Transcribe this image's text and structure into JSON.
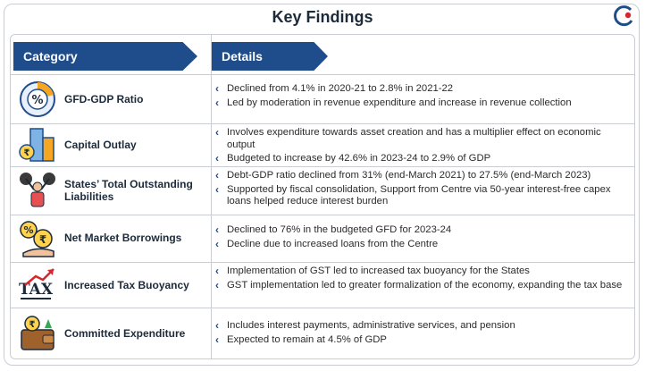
{
  "title": "Key Findings",
  "headers": {
    "category": "Category",
    "details": "Details"
  },
  "rows": [
    {
      "icon": "pie-chart-percent-icon",
      "category": "GFD-GDP Ratio",
      "details": [
        "Declined from 4.1% in 2020-21 to 2.8% in 2021-22",
        "Led by moderation in revenue expenditure and increase in revenue collection"
      ]
    },
    {
      "icon": "buildings-rupee-icon",
      "category": "Capital Outlay",
      "details": [
        "Involves expenditure towards asset creation and has a multiplier effect on economic output",
        "Budgeted to increase by 42.6% in 2023-24 to 2.9% of GDP"
      ]
    },
    {
      "icon": "person-weights-icon",
      "category": "States’ Total Outstanding Liabilities",
      "details": [
        "Debt-GDP ratio declined from 31% (end-March 2021) to 27.5% (end-March 2023)",
        "Supported by fiscal consolidation, Support from Centre via 50-year interest-free capex loans helped reduce interest burden"
      ]
    },
    {
      "icon": "percent-rupee-hand-icon",
      "category": "Net Market Borrowings",
      "details": [
        "Declined to 76% in the budgeted GFD for 2023-24",
        "Decline due to increased loans from the Centre"
      ]
    },
    {
      "icon": "tax-arrow-icon",
      "category": "Increased Tax Buoyancy",
      "details": [
        "Implementation of GST led to increased tax buoyancy for the States",
        "GST implementation led to greater formalization of the economy, expanding the tax base"
      ]
    },
    {
      "icon": "wallet-rupee-icon",
      "category": "Committed Expenditure",
      "details": [
        "Includes interest payments, administrative services, and pension",
        "Expected to remain at 4.5% of GDP"
      ]
    }
  ],
  "colors": {
    "header_bg": "#1f4d8c",
    "bullet": "#1f4d8c",
    "border": "#c9cdd3"
  }
}
